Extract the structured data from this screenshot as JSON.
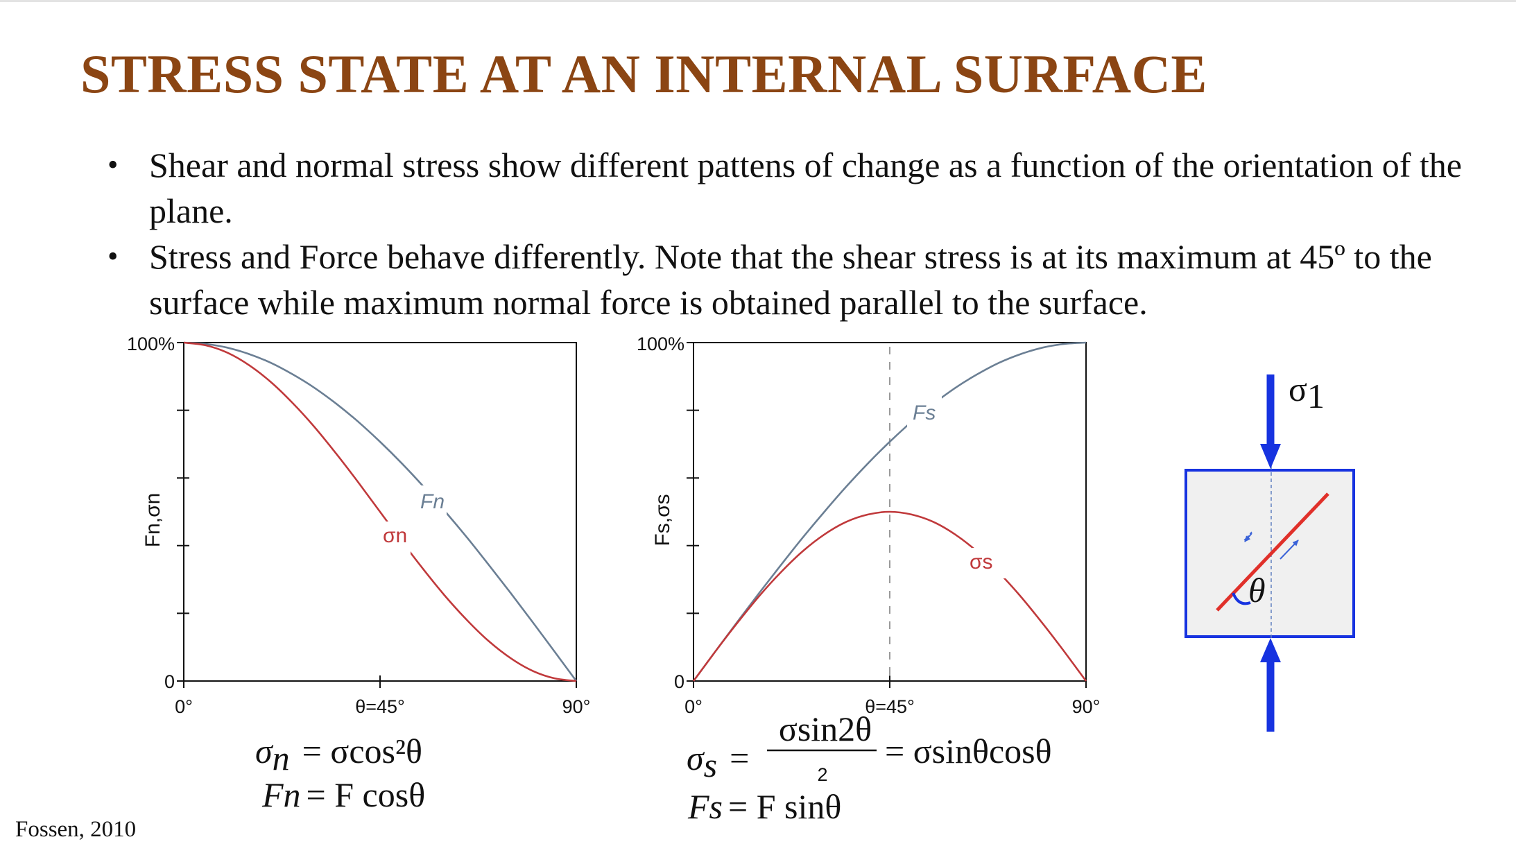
{
  "slide": {
    "title": "STRESS STATE AT AN INTERNAL SURFACE",
    "bullets": [
      "Shear and normal stress show different pattens of change as a function of the orientation of the plane.",
      "Stress and Force behave differently. Note that the shear stress is at its maximum at 45º to the surface while maximum normal force is obtained parallel to the surface."
    ],
    "citation": "Fossen, 2010"
  },
  "chart_data": [
    {
      "type": "line",
      "x": [
        0,
        5,
        10,
        15,
        20,
        25,
        30,
        35,
        40,
        45,
        50,
        55,
        60,
        65,
        70,
        75,
        80,
        85,
        90
      ],
      "x_unit": "degrees",
      "xlim": [
        0,
        90
      ],
      "ylim": [
        0,
        100
      ],
      "y_unit": "%",
      "x_tick_labels": [
        "0°",
        "θ=45°",
        "90°"
      ],
      "y_tick_labels": [
        "0",
        "100%"
      ],
      "ylabel": "Fn,σn",
      "series": [
        {
          "name": "Fn",
          "color": "#6b7f94",
          "values": [
            100,
            99.6,
            98.5,
            96.6,
            94.0,
            90.6,
            86.6,
            81.9,
            76.6,
            70.7,
            64.3,
            57.4,
            50.0,
            42.3,
            34.2,
            25.9,
            17.4,
            8.7,
            0
          ]
        },
        {
          "name": "σn",
          "color": "#c0393b",
          "values": [
            100,
            99.2,
            97.0,
            93.3,
            88.3,
            82.1,
            75.0,
            67.1,
            58.7,
            50.0,
            41.3,
            32.9,
            25.0,
            17.9,
            11.7,
            6.7,
            3.0,
            0.8,
            0
          ]
        }
      ],
      "formulas": [
        {
          "lhs": "σ",
          "sub": "n",
          "rhs": "= σcos²θ"
        },
        {
          "lhs": "Fn",
          "rhs": "= F cosθ"
        }
      ]
    },
    {
      "type": "line",
      "x": [
        0,
        5,
        10,
        15,
        20,
        25,
        30,
        35,
        40,
        45,
        50,
        55,
        60,
        65,
        70,
        75,
        80,
        85,
        90
      ],
      "x_unit": "degrees",
      "xlim": [
        0,
        90
      ],
      "ylim": [
        0,
        100
      ],
      "y_unit": "%",
      "x_tick_labels": [
        "0°",
        "θ=45°",
        "90°"
      ],
      "y_tick_labels": [
        "0",
        "100%"
      ],
      "ylabel": "Fs,σs",
      "series": [
        {
          "name": "Fs",
          "color": "#6b7f94",
          "values": [
            0,
            8.7,
            17.4,
            25.9,
            34.2,
            42.3,
            50.0,
            57.4,
            64.3,
            70.7,
            76.6,
            81.9,
            86.6,
            90.6,
            94.0,
            96.6,
            98.5,
            99.6,
            100
          ]
        },
        {
          "name": "σs",
          "color": "#c0393b",
          "values": [
            0,
            8.7,
            17.1,
            25.0,
            32.1,
            38.3,
            43.3,
            47.0,
            49.2,
            50.0,
            49.2,
            47.0,
            43.3,
            38.3,
            32.1,
            25.0,
            17.1,
            8.7,
            0
          ]
        }
      ],
      "formulas": [
        {
          "lhs": "σ",
          "sub": "s",
          "rhs_num": "σsin2θ",
          "rhs_den": "2",
          "rhs2": "= σsinθcosθ"
        },
        {
          "lhs": "Fs",
          "rhs": "= F sinθ"
        }
      ]
    }
  ],
  "diagram": {
    "sigma_label": "σ",
    "sigma_sub": "1",
    "angle_label": "θ",
    "arrow_color": "#1733e0",
    "plane_color": "#e0302a"
  }
}
